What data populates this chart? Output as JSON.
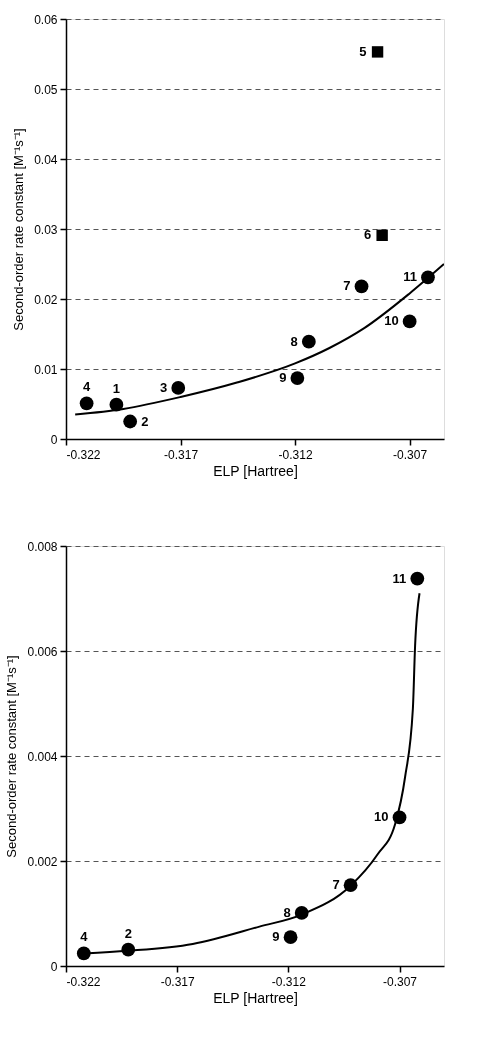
{
  "chart_data": [
    {
      "type": "scatter",
      "xlabel": "ELP [Hartree]",
      "ylabel": "Second-order rate constant [M⁻¹s⁻¹]",
      "xlim": [
        -0.322,
        -0.3055
      ],
      "xticks": [
        -0.322,
        -0.317,
        -0.312,
        -0.307
      ],
      "ylim": [
        0,
        0.06
      ],
      "yticks": [
        0,
        0.01,
        0.02,
        0.03,
        0.04,
        0.05,
        0.06
      ],
      "grid": "y",
      "series": [
        {
          "marker": "circle",
          "color": "#000000",
          "x": [
            -0.3211,
            -0.3198,
            -0.3192,
            -0.3171,
            -0.3119,
            -0.3114,
            -0.3091,
            -0.307,
            -0.3062
          ],
          "values": [
            0.0051,
            0.0049,
            0.0025,
            0.0073,
            0.0087,
            0.0139,
            0.0218,
            0.0168,
            0.0231
          ]
        },
        {
          "marker": "square",
          "color": "#000000",
          "x": [
            -0.3084,
            -0.3082
          ],
          "values": [
            0.0553,
            0.0291
          ]
        },
        {
          "type": "line",
          "marker": "none",
          "line_style": "solid",
          "color": "#000000",
          "x": [
            -0.3216,
            -0.3195,
            -0.317,
            -0.3145,
            -0.312,
            -0.3105,
            -0.309,
            -0.307,
            -0.3055
          ],
          "values": [
            0.0035,
            0.0043,
            0.006,
            0.0081,
            0.0108,
            0.013,
            0.0158,
            0.0208,
            0.025
          ]
        }
      ],
      "annotations": [
        {
          "text": "4",
          "x": -0.3211,
          "y": 0.0051
        },
        {
          "text": "1",
          "x": -0.3198,
          "y": 0.0049
        },
        {
          "text": "2",
          "x": -0.3192,
          "y": 0.0025
        },
        {
          "text": "3",
          "x": -0.3171,
          "y": 0.0073
        },
        {
          "text": "9",
          "x": -0.3119,
          "y": 0.0087
        },
        {
          "text": "8",
          "x": -0.3114,
          "y": 0.0139
        },
        {
          "text": "7",
          "x": -0.3091,
          "y": 0.0218
        },
        {
          "text": "5",
          "x": -0.3084,
          "y": 0.0553
        },
        {
          "text": "6",
          "x": -0.3082,
          "y": 0.0291
        },
        {
          "text": "10",
          "x": -0.307,
          "y": 0.0168
        },
        {
          "text": "11",
          "x": -0.3062,
          "y": 0.0231
        }
      ]
    },
    {
      "type": "scatter",
      "xlabel": "ELP [Hartree]",
      "ylabel": "Second-order rate constant  [M⁻¹s⁻¹]",
      "xlim": [
        -0.322,
        -0.305
      ],
      "xticks": [
        -0.322,
        -0.317,
        -0.312,
        -0.307
      ],
      "ylim": [
        0,
        0.008
      ],
      "yticks": [
        0,
        0.002,
        0.004,
        0.006,
        0.008
      ],
      "grid": "y",
      "series": [
        {
          "marker": "circle",
          "color": "#000000",
          "x": [
            -0.3212,
            -0.3192,
            -0.3119,
            -0.3114,
            -0.3092,
            -0.307,
            -0.3062
          ],
          "values": [
            0.00024,
            0.00031,
            0.00055,
            0.00101,
            0.00154,
            0.00283,
            0.00738
          ]
        },
        {
          "type": "line",
          "marker": "none",
          "line_style": "solid",
          "color": "#000000",
          "x": [
            -0.3212,
            -0.3192,
            -0.3163,
            -0.3133,
            -0.3114,
            -0.3092,
            -0.308,
            -0.3072,
            -0.30675,
            -0.3064,
            -0.3063,
            -0.3061
          ],
          "values": [
            0.00024,
            0.00029,
            0.00042,
            0.00075,
            0.00098,
            0.00153,
            0.00212,
            0.0027,
            0.0036,
            0.0049,
            0.0061,
            0.0071
          ]
        }
      ],
      "annotations": [
        {
          "text": "4",
          "x": -0.3212,
          "y": 0.00024
        },
        {
          "text": "2",
          "x": -0.3192,
          "y": 0.00031
        },
        {
          "text": "9",
          "x": -0.3119,
          "y": 0.00055
        },
        {
          "text": "8",
          "x": -0.3114,
          "y": 0.00101
        },
        {
          "text": "7",
          "x": -0.3092,
          "y": 0.00154
        },
        {
          "text": "10",
          "x": -0.307,
          "y": 0.00283
        },
        {
          "text": "11",
          "x": -0.3062,
          "y": 0.00738
        }
      ]
    }
  ]
}
